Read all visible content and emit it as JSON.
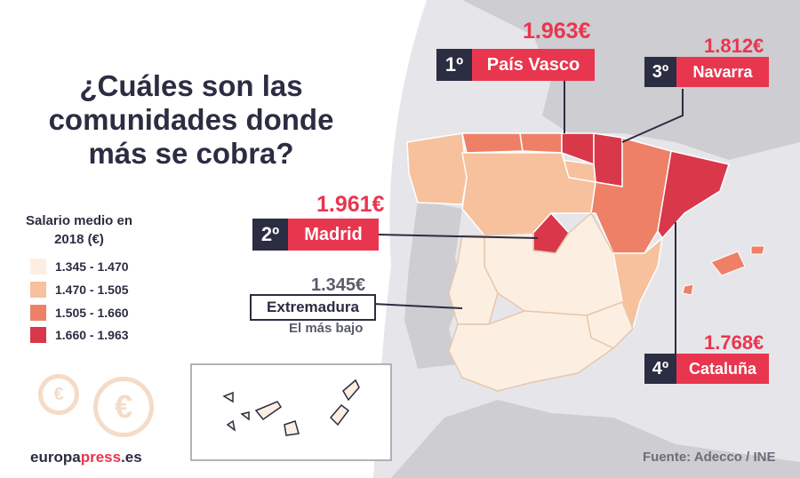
{
  "title": "¿Cuáles son las comunidades donde más se cobra?",
  "legend": {
    "title": "Salario medio en 2018 (€)",
    "items": [
      {
        "range": "1.345 - 1.470",
        "color": "#fcefe2"
      },
      {
        "range": "1.470 - 1.505",
        "color": "#f6c19c"
      },
      {
        "range": "1.505 - 1.660",
        "color": "#ee8068"
      },
      {
        "range": "1.660 - 1.963",
        "color": "#d8384a"
      }
    ]
  },
  "callouts": [
    {
      "rank": "1º",
      "name": "País Vasco",
      "value": "1.963€"
    },
    {
      "rank": "2º",
      "name": "Madrid",
      "value": "1.961€"
    },
    {
      "rank": "3º",
      "name": "Navarra",
      "value": "1.812€"
    },
    {
      "rank": "4º",
      "name": "Cataluña",
      "value": "1.768€"
    }
  ],
  "lowest": {
    "name": "Extremadura",
    "value": "1.345€",
    "note": "El más bajo"
  },
  "source": "Fuente: Adecco / INE",
  "brand": {
    "main": "europa",
    "accent": "press",
    "suffix": ".es"
  },
  "colors": {
    "accent": "#e8364e",
    "dark": "#2b2d42",
    "sea": "#e8e8eb",
    "land": "#cfcfd4"
  },
  "icons": [
    "euro-coin-icon",
    "euro-coin-icon"
  ]
}
